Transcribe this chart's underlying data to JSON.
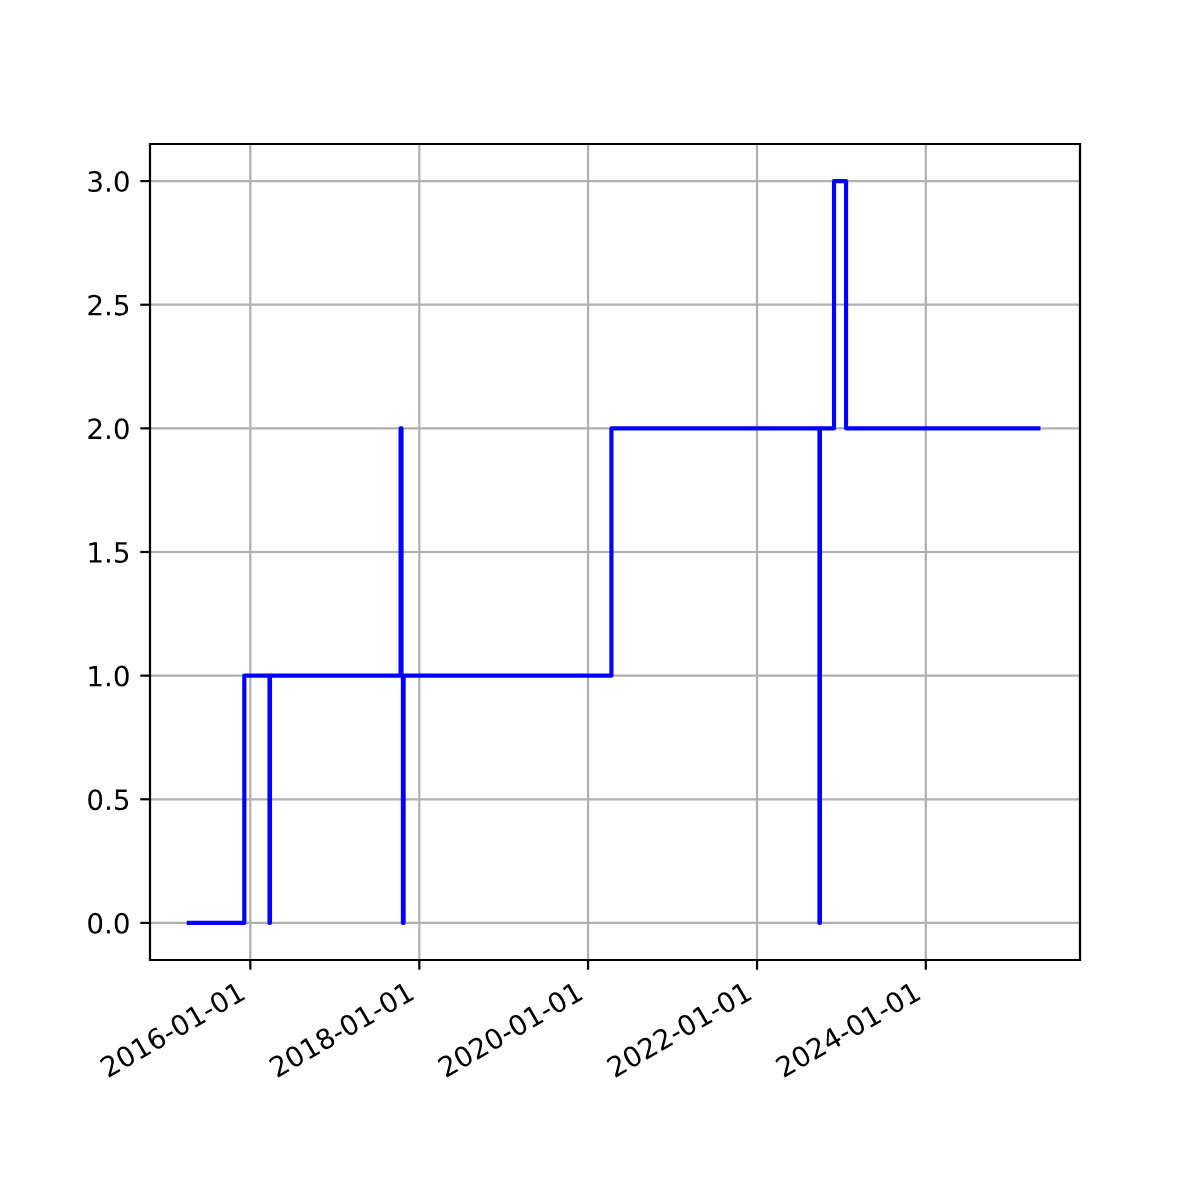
{
  "chart_data": {
    "type": "step",
    "x": [
      "2015-04-10",
      "2015-12-06",
      "2016-03-24",
      "2016-03-26",
      "2017-10-12",
      "2017-10-16",
      "2017-10-22",
      "2017-10-25",
      "2020-04-11",
      "2022-09-28",
      "2022-09-30",
      "2022-11-30",
      "2023-01-21",
      "2025-05-02"
    ],
    "series": [
      {
        "color": "#0000ff",
        "values": [
          0,
          1,
          0,
          1,
          2,
          1,
          0,
          1,
          2,
          0,
          2,
          3,
          2,
          2
        ]
      }
    ],
    "xlim": [
      "2014-10-24",
      "2025-10-29"
    ],
    "xticks": [
      {
        "value": "2016-01-01",
        "label": "2016-01-01"
      },
      {
        "value": "2018-01-01",
        "label": "2018-01-01"
      },
      {
        "value": "2020-01-01",
        "label": "2020-01-01"
      },
      {
        "value": "2022-01-01",
        "label": "2022-01-01"
      },
      {
        "value": "2024-01-01",
        "label": "2024-01-01"
      }
    ],
    "ylim": [
      -0.15,
      3.15
    ],
    "yticks": [
      {
        "value": 0,
        "label": "0.0"
      },
      {
        "value": 0.5,
        "label": "0.5"
      },
      {
        "value": 1,
        "label": "1.0"
      },
      {
        "value": 1.5,
        "label": "1.5"
      },
      {
        "value": 2,
        "label": "2.0"
      },
      {
        "value": 2.5,
        "label": "2.5"
      },
      {
        "value": 3,
        "label": "3.0"
      }
    ],
    "grid": true
  }
}
